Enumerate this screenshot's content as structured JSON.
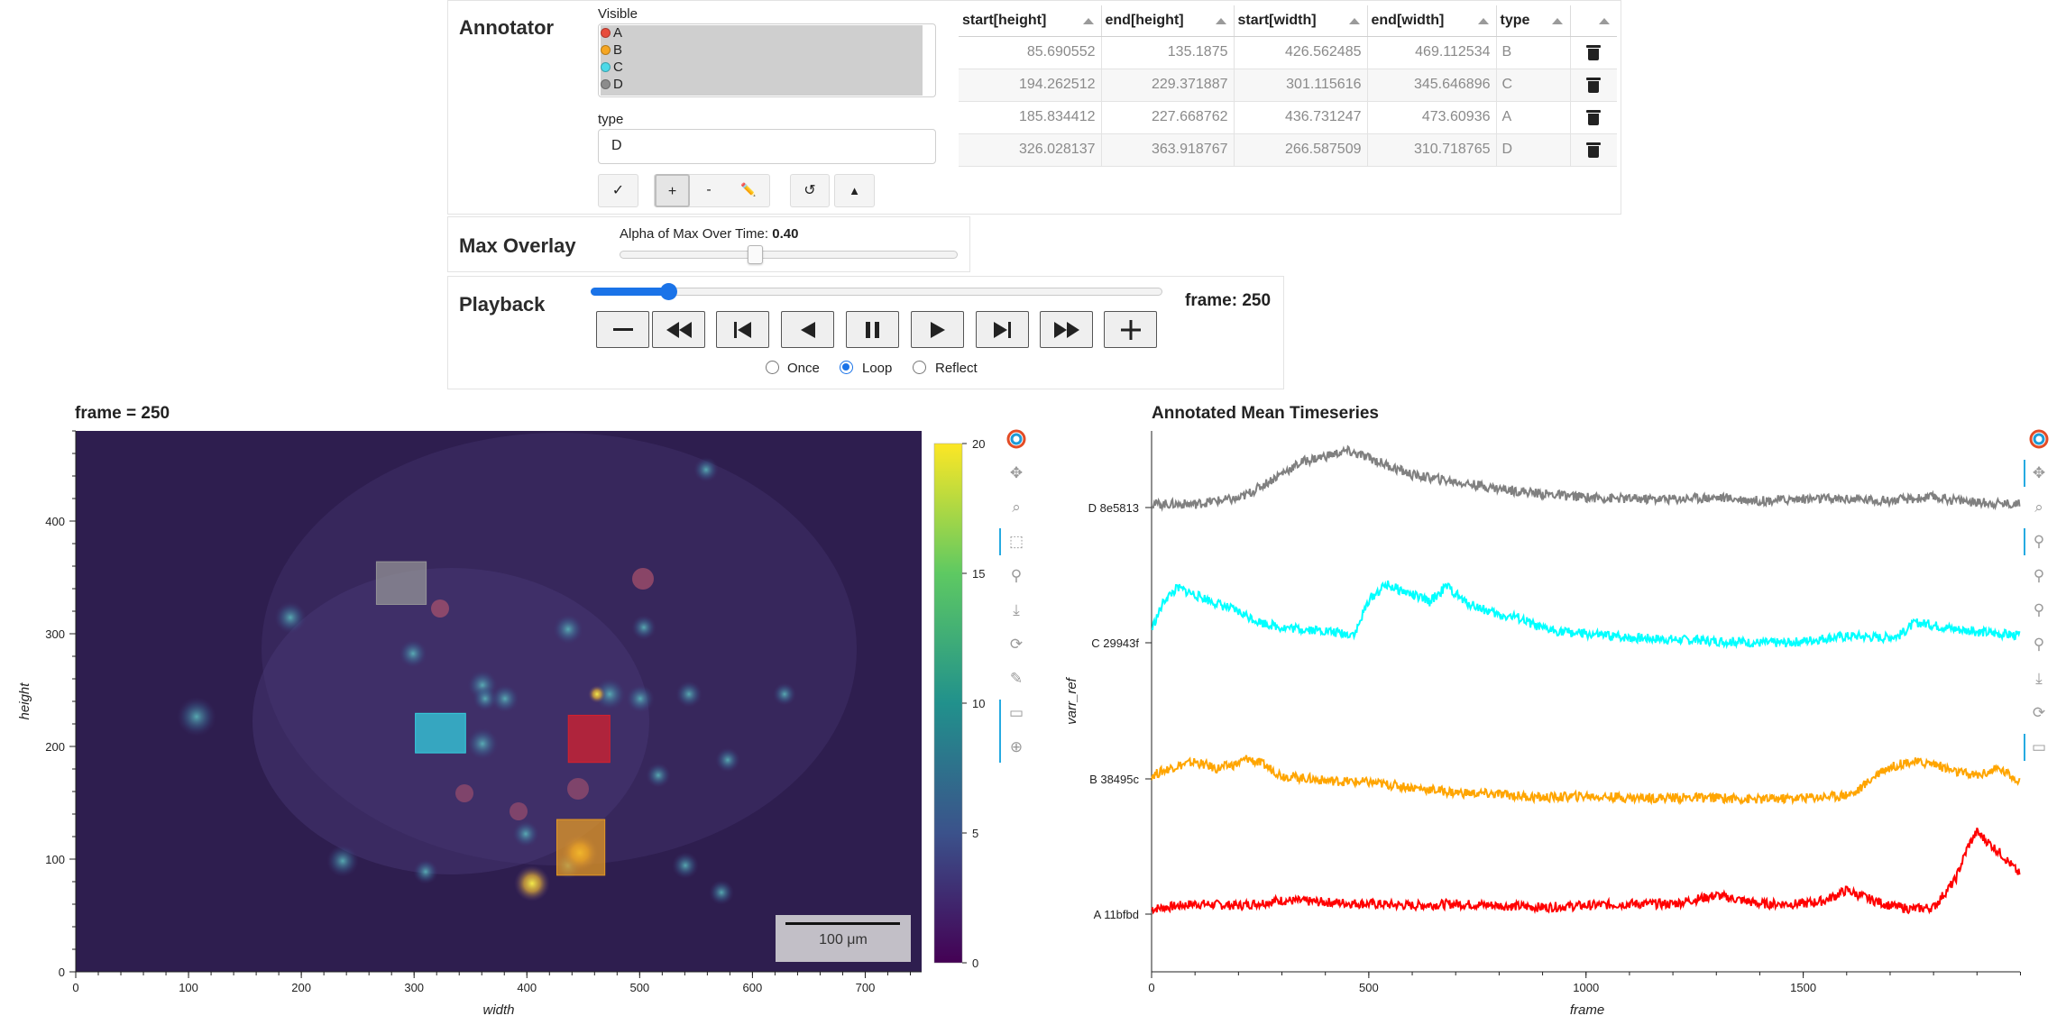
{
  "annotator": {
    "title": "Annotator",
    "visible_label": "Visible",
    "visible_options": [
      {
        "label": "A",
        "color": "#e74c3c"
      },
      {
        "label": "B",
        "color": "#f5a623"
      },
      {
        "label": "C",
        "color": "#4dd9e8"
      },
      {
        "label": "D",
        "color": "#8c8c8c"
      }
    ],
    "type_label": "type",
    "type_value": "D",
    "tool_buttons": {
      "check": "✓",
      "plus": "+",
      "minus": "-",
      "pencil": "✏️",
      "undo": "↺",
      "up": "▲"
    },
    "table": {
      "headers": [
        "start[height]",
        "end[height]",
        "start[width]",
        "end[width]",
        "type",
        ""
      ],
      "rows": [
        [
          "85.690552",
          "135.1875",
          "426.562485",
          "469.112534",
          "B"
        ],
        [
          "194.262512",
          "229.371887",
          "301.115616",
          "345.646896",
          "C"
        ],
        [
          "185.834412",
          "227.668762",
          "436.731247",
          "473.60936",
          "A"
        ],
        [
          "326.028137",
          "363.918767",
          "266.587509",
          "310.718765",
          "D"
        ]
      ]
    }
  },
  "max_overlay": {
    "title": "Max Overlay",
    "alpha_label": "Alpha of Max Over Time: ",
    "alpha_value": "0.40",
    "alpha_fraction": 0.4
  },
  "playback": {
    "title": "Playback",
    "frame_label": "frame: 250",
    "frame_fraction": 0.135,
    "modes": [
      "Once",
      "Loop",
      "Reflect"
    ],
    "selected_mode": "Loop"
  },
  "image_plot": {
    "title": "frame = 250",
    "xlabel": "width",
    "ylabel": "height",
    "x_ticks": [
      "0",
      "100",
      "200",
      "300",
      "400",
      "500",
      "600",
      "700"
    ],
    "y_ticks": [
      "0",
      "100",
      "200",
      "300",
      "400"
    ],
    "colorbar_ticks": [
      "0",
      "5",
      "10",
      "15",
      "20"
    ],
    "scalebar_label": "100 μm",
    "boxes": [
      {
        "type": "A",
        "x0": 436.73,
        "x1": 473.61,
        "y0": 185.83,
        "y1": 227.67,
        "color": "#e0202a"
      },
      {
        "type": "B",
        "x0": 426.56,
        "x1": 469.11,
        "y0": 85.69,
        "y1": 135.19,
        "color": "#f0a020"
      },
      {
        "type": "C",
        "x0": 301.12,
        "x1": 345.65,
        "y0": 194.26,
        "y1": 229.37,
        "color": "#33d8e6"
      },
      {
        "type": "D",
        "x0": 266.59,
        "x1": 310.72,
        "y0": 326.03,
        "y1": 363.92,
        "color": "#9a9a9a"
      }
    ]
  },
  "chart_data": {
    "type": "line",
    "title": "Annotated Mean Timeseries",
    "xlabel": "frame",
    "ylabel": "varr_ref",
    "xlim": [
      0,
      1999
    ],
    "x_ticks": [
      "0",
      "500",
      "1000",
      "1500"
    ],
    "categories": [
      "A 11bfbd",
      "B 38495c",
      "C 29943f",
      "D 8e5813"
    ],
    "series": [
      {
        "name": "A 11bfbd",
        "color": "#ff0000",
        "x": [
          0,
          100,
          200,
          300,
          400,
          500,
          600,
          700,
          800,
          900,
          1000,
          1100,
          1200,
          1300,
          1400,
          1500,
          1550,
          1600,
          1650,
          1700,
          1750,
          1800,
          1850,
          1880,
          1900,
          1930,
          1960,
          1999
        ],
        "y": [
          0.3,
          0.6,
          0.5,
          0.8,
          0.7,
          0.6,
          0.5,
          0.6,
          0.5,
          0.4,
          0.5,
          0.6,
          0.6,
          1.1,
          0.6,
          0.6,
          0.8,
          1.4,
          0.9,
          0.5,
          0.3,
          0.4,
          2.0,
          4.0,
          4.8,
          4.1,
          3.4,
          2.3
        ]
      },
      {
        "name": "B 38495c",
        "color": "#ffa500",
        "x": [
          0,
          50,
          100,
          150,
          200,
          220,
          260,
          300,
          400,
          500,
          600,
          700,
          800,
          900,
          1000,
          1100,
          1200,
          1300,
          1400,
          1500,
          1580,
          1620,
          1680,
          1740,
          1800,
          1850,
          1900,
          1950,
          1999
        ],
        "y": [
          0.2,
          0.7,
          1.0,
          0.6,
          0.9,
          1.2,
          0.8,
          0.2,
          -0.1,
          -0.2,
          -0.5,
          -0.8,
          -0.9,
          -1.1,
          -1.0,
          -1.1,
          -1.1,
          -1.1,
          -1.2,
          -1.1,
          -1.0,
          -0.8,
          0.5,
          1.0,
          0.9,
          0.4,
          0.2,
          0.6,
          -0.1
        ]
      },
      {
        "name": "C 29943f",
        "color": "#00ffff",
        "x": [
          0,
          30,
          60,
          100,
          150,
          200,
          250,
          300,
          400,
          450,
          470,
          500,
          540,
          600,
          640,
          680,
          720,
          800,
          840,
          900,
          1000,
          1100,
          1200,
          1300,
          1400,
          1460,
          1500,
          1560,
          1620,
          1680,
          1720,
          1760,
          1850,
          1920,
          1999
        ],
        "y": [
          0.8,
          2.5,
          3.2,
          2.8,
          2.3,
          1.8,
          1.2,
          0.9,
          0.7,
          0.5,
          0.6,
          2.5,
          3.4,
          2.8,
          2.4,
          3.3,
          2.4,
          1.6,
          1.5,
          0.8,
          0.5,
          0.3,
          0.2,
          0.1,
          0.0,
          0.0,
          0.1,
          0.3,
          0.4,
          0.3,
          0.4,
          1.2,
          0.8,
          0.6,
          0.4
        ]
      },
      {
        "name": "D 8e5813",
        "color": "#808080",
        "x": [
          0,
          100,
          150,
          200,
          250,
          300,
          350,
          400,
          450,
          500,
          550,
          600,
          700,
          800,
          900,
          1000,
          1100,
          1200,
          1300,
          1400,
          1500,
          1600,
          1700,
          1800,
          1900,
          1999
        ],
        "y": [
          0.2,
          0.2,
          0.4,
          0.5,
          1.2,
          2.0,
          2.7,
          3.0,
          3.3,
          2.9,
          2.4,
          1.9,
          1.5,
          1.1,
          0.8,
          0.6,
          0.5,
          0.5,
          0.6,
          0.4,
          0.5,
          0.5,
          0.4,
          0.6,
          0.3,
          0.2
        ]
      }
    ]
  }
}
